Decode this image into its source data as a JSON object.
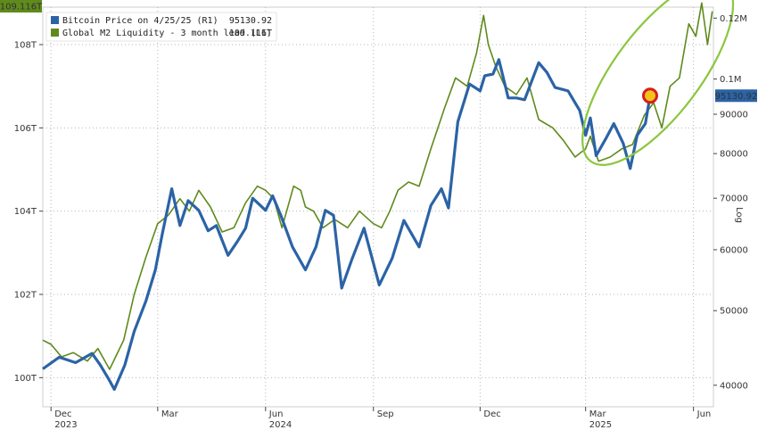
{
  "chart_data": {
    "type": "line",
    "left_badge": "109.116T",
    "right_badge": "95130.92",
    "right_axis_label": "Log",
    "colors": {
      "bitcoin": "#2b63a6",
      "m2": "#5f8a1c",
      "ellipse": "#8cc63f",
      "marker_fill": "#f2c21b",
      "marker_ring": "#d61e1e"
    },
    "left_axis": {
      "ticks": [
        "100T",
        "102T",
        "104T",
        "106T",
        "108T"
      ],
      "values": [
        100,
        102,
        104,
        106,
        108
      ],
      "range": [
        99.3,
        108.9
      ]
    },
    "right_axis": {
      "ticks": [
        "40000",
        "50000",
        "60000",
        "70000",
        "80000",
        "90000",
        "0.1M",
        "0.12M"
      ],
      "values": [
        40000,
        50000,
        60000,
        70000,
        80000,
        90000,
        100000,
        120000
      ],
      "scale": "log",
      "range": [
        37500,
        124000
      ]
    },
    "x_axis": {
      "range": [
        "2023-11-24",
        "2025-06-18"
      ],
      "ticks": [
        {
          "date": "2023-12-01",
          "label": "Dec",
          "year": "2023"
        },
        {
          "date": "2024-03-01",
          "label": "Mar",
          "year": ""
        },
        {
          "date": "2024-06-01",
          "label": "Jun",
          "year": "2024"
        },
        {
          "date": "2024-09-01",
          "label": "Sep",
          "year": ""
        },
        {
          "date": "2024-12-01",
          "label": "Dec",
          "year": ""
        },
        {
          "date": "2025-03-01",
          "label": "Mar",
          "year": "2025"
        },
        {
          "date": "2025-06-01",
          "label": "Jun",
          "year": ""
        }
      ]
    },
    "legend": [
      {
        "name": "Bitcoin Price on 4/25/25 (R1)",
        "value": "95130.92",
        "color": "#2b63a6"
      },
      {
        "name": "Global M2 Liquidity - 3 month lead (L1)",
        "value": "109.116T",
        "color": "#5f8a1c"
      }
    ],
    "series": [
      {
        "name": "Bitcoin Price on 4/25/25",
        "axis": "right",
        "points": [
          [
            "2023-11-24",
            42000
          ],
          [
            "2023-12-08",
            43500
          ],
          [
            "2023-12-22",
            42800
          ],
          [
            "2024-01-05",
            44000
          ],
          [
            "2024-01-12",
            42500
          ],
          [
            "2024-01-19",
            40800
          ],
          [
            "2024-01-24",
            39500
          ],
          [
            "2024-02-02",
            42500
          ],
          [
            "2024-02-10",
            47000
          ],
          [
            "2024-02-20",
            51500
          ],
          [
            "2024-02-28",
            56500
          ],
          [
            "2024-03-05",
            63000
          ],
          [
            "2024-03-13",
            72000
          ],
          [
            "2024-03-20",
            64500
          ],
          [
            "2024-03-27",
            69500
          ],
          [
            "2024-04-05",
            67500
          ],
          [
            "2024-04-13",
            63500
          ],
          [
            "2024-04-20",
            64500
          ],
          [
            "2024-04-30",
            59000
          ],
          [
            "2024-05-08",
            61500
          ],
          [
            "2024-05-15",
            64000
          ],
          [
            "2024-05-21",
            70000
          ],
          [
            "2024-06-01",
            67500
          ],
          [
            "2024-06-07",
            70500
          ],
          [
            "2024-06-14",
            66500
          ],
          [
            "2024-06-24",
            60500
          ],
          [
            "2024-07-05",
            56500
          ],
          [
            "2024-07-14",
            60500
          ],
          [
            "2024-07-22",
            67500
          ],
          [
            "2024-07-29",
            66500
          ],
          [
            "2024-08-05",
            53500
          ],
          [
            "2024-08-14",
            58500
          ],
          [
            "2024-08-24",
            64000
          ],
          [
            "2024-09-06",
            54000
          ],
          [
            "2024-09-17",
            58500
          ],
          [
            "2024-09-27",
            65500
          ],
          [
            "2024-10-10",
            60500
          ],
          [
            "2024-10-20",
            68500
          ],
          [
            "2024-10-29",
            72000
          ],
          [
            "2024-11-04",
            68000
          ],
          [
            "2024-11-12",
            88000
          ],
          [
            "2024-11-22",
            98500
          ],
          [
            "2024-12-01",
            96500
          ],
          [
            "2024-12-05",
            101000
          ],
          [
            "2024-12-12",
            101500
          ],
          [
            "2024-12-17",
            106000
          ],
          [
            "2024-12-25",
            94500
          ],
          [
            "2025-01-01",
            94500
          ],
          [
            "2025-01-08",
            94000
          ],
          [
            "2025-01-20",
            105000
          ],
          [
            "2025-01-27",
            102000
          ],
          [
            "2025-02-03",
            97500
          ],
          [
            "2025-02-14",
            96500
          ],
          [
            "2025-02-24",
            91000
          ],
          [
            "2025-03-01",
            84500
          ],
          [
            "2025-03-05",
            89000
          ],
          [
            "2025-03-10",
            79500
          ],
          [
            "2025-03-18",
            83500
          ],
          [
            "2025-03-25",
            87500
          ],
          [
            "2025-04-02",
            82500
          ],
          [
            "2025-04-08",
            76500
          ],
          [
            "2025-04-14",
            84500
          ],
          [
            "2025-04-21",
            87500
          ],
          [
            "2025-04-25",
            95130.92
          ]
        ]
      },
      {
        "name": "Global M2 Liquidity - 3 month lead",
        "axis": "left",
        "points": [
          [
            "2023-11-24",
            100.9
          ],
          [
            "2023-12-01",
            100.8
          ],
          [
            "2023-12-10",
            100.5
          ],
          [
            "2023-12-20",
            100.6
          ],
          [
            "2024-01-01",
            100.4
          ],
          [
            "2024-01-10",
            100.7
          ],
          [
            "2024-01-20",
            100.2
          ],
          [
            "2024-02-01",
            100.9
          ],
          [
            "2024-02-10",
            102.0
          ],
          [
            "2024-02-20",
            102.9
          ],
          [
            "2024-03-01",
            103.7
          ],
          [
            "2024-03-10",
            103.9
          ],
          [
            "2024-03-20",
            104.3
          ],
          [
            "2024-03-28",
            104.0
          ],
          [
            "2024-04-05",
            104.5
          ],
          [
            "2024-04-15",
            104.1
          ],
          [
            "2024-04-25",
            103.5
          ],
          [
            "2024-05-05",
            103.6
          ],
          [
            "2024-05-15",
            104.2
          ],
          [
            "2024-05-25",
            104.6
          ],
          [
            "2024-06-01",
            104.5
          ],
          [
            "2024-06-08",
            104.3
          ],
          [
            "2024-06-15",
            103.6
          ],
          [
            "2024-06-25",
            104.6
          ],
          [
            "2024-07-01",
            104.5
          ],
          [
            "2024-07-05",
            104.1
          ],
          [
            "2024-07-12",
            104.0
          ],
          [
            "2024-07-20",
            103.6
          ],
          [
            "2024-07-30",
            103.8
          ],
          [
            "2024-08-10",
            103.6
          ],
          [
            "2024-08-20",
            104.0
          ],
          [
            "2024-09-01",
            103.7
          ],
          [
            "2024-09-08",
            103.6
          ],
          [
            "2024-09-15",
            104.0
          ],
          [
            "2024-09-22",
            104.5
          ],
          [
            "2024-10-01",
            104.7
          ],
          [
            "2024-10-10",
            104.6
          ],
          [
            "2024-10-20",
            105.5
          ],
          [
            "2024-11-01",
            106.5
          ],
          [
            "2024-11-10",
            107.2
          ],
          [
            "2024-11-20",
            107.0
          ],
          [
            "2024-11-28",
            107.8
          ],
          [
            "2024-12-04",
            108.7
          ],
          [
            "2024-12-08",
            108.0
          ],
          [
            "2024-12-14",
            107.5
          ],
          [
            "2024-12-22",
            107.0
          ],
          [
            "2025-01-01",
            106.8
          ],
          [
            "2025-01-10",
            107.2
          ],
          [
            "2025-01-20",
            106.2
          ],
          [
            "2025-02-01",
            106.0
          ],
          [
            "2025-02-10",
            105.7
          ],
          [
            "2025-02-20",
            105.3
          ],
          [
            "2025-03-01",
            105.5
          ],
          [
            "2025-03-05",
            105.8
          ],
          [
            "2025-03-12",
            105.2
          ],
          [
            "2025-03-22",
            105.3
          ],
          [
            "2025-04-01",
            105.5
          ],
          [
            "2025-04-10",
            105.6
          ],
          [
            "2025-04-20",
            106.3
          ],
          [
            "2025-04-28",
            106.6
          ],
          [
            "2025-05-05",
            106.0
          ],
          [
            "2025-05-12",
            107.0
          ],
          [
            "2025-05-20",
            107.2
          ],
          [
            "2025-05-28",
            108.5
          ],
          [
            "2025-06-03",
            108.2
          ],
          [
            "2025-06-08",
            109.0
          ],
          [
            "2025-06-13",
            108.0
          ],
          [
            "2025-06-17",
            108.8
          ]
        ]
      }
    ],
    "annotations": [
      {
        "type": "marker",
        "x": "2025-04-25",
        "series": "Bitcoin Price on 4/25/25"
      },
      {
        "type": "ellipse",
        "from": "2025-03-10",
        "to": "2025-06-17"
      }
    ]
  }
}
